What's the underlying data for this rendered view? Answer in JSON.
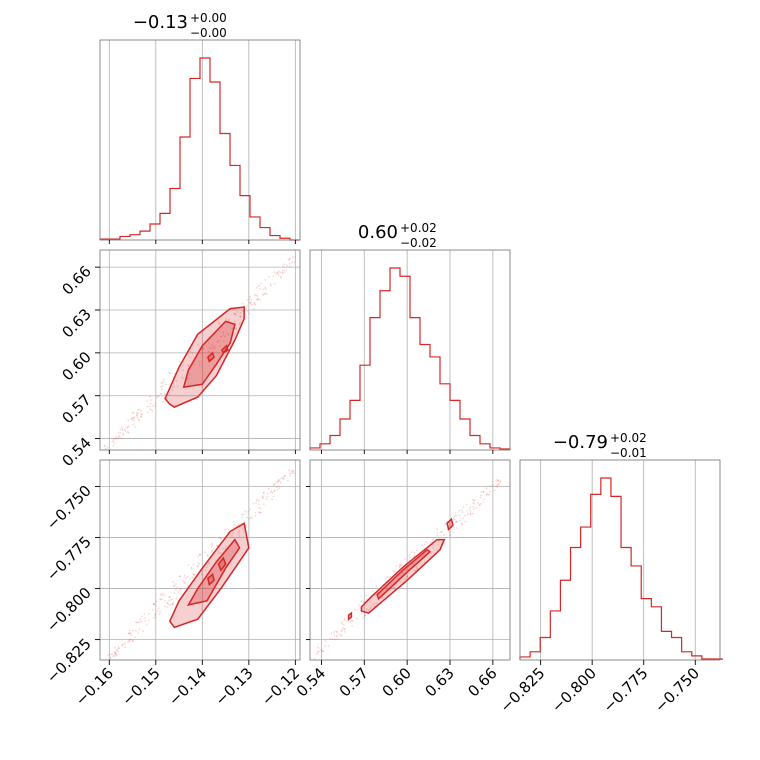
{
  "chart_data": {
    "type": "corner",
    "color": "#d62728",
    "grid": true,
    "panels": [
      {
        "id": "hist_p0",
        "type": "histogram",
        "title": {
          "value": "−0.13",
          "plus": "+0.00",
          "minus": "−0.00"
        },
        "xlim": [
          -0.162,
          -0.119
        ],
        "bin_edges": [
          -0.162,
          -0.15985,
          -0.1577,
          -0.15555,
          -0.1534,
          -0.15125,
          -0.1491,
          -0.14695,
          -0.1448,
          -0.14265,
          -0.1405,
          -0.13835,
          -0.1362,
          -0.13405,
          -0.1319,
          -0.12975,
          -0.1276,
          -0.12545,
          -0.1233,
          -0.12115,
          -0.119
        ],
        "counts": [
          1,
          1,
          4,
          6,
          10,
          18,
          30,
          58,
          116,
          182,
          205,
          178,
          120,
          84,
          50,
          26,
          14,
          5,
          2,
          0
        ],
        "xticks": [],
        "xticklabels": []
      },
      {
        "id": "hist_p1",
        "type": "histogram",
        "title": {
          "value": "0.60",
          "plus": "+0.02",
          "minus": "−0.02"
        },
        "xlim": [
          0.532,
          0.672
        ],
        "bin_edges": [
          0.532,
          0.539,
          0.546,
          0.553,
          0.56,
          0.567,
          0.574,
          0.581,
          0.588,
          0.595,
          0.602,
          0.609,
          0.616,
          0.623,
          0.63,
          0.637,
          0.644,
          0.651,
          0.658,
          0.665,
          0.672
        ],
        "counts": [
          2,
          6,
          14,
          30,
          48,
          82,
          128,
          154,
          176,
          168,
          128,
          102,
          90,
          64,
          48,
          30,
          14,
          6,
          2,
          1
        ],
        "xticks": [],
        "xticklabels": []
      },
      {
        "id": "hist_p2",
        "type": "histogram",
        "title": {
          "value": "−0.79",
          "plus": "+0.02",
          "minus": "−0.01"
        },
        "xlim": [
          -0.835,
          -0.738
        ],
        "bin_edges": [
          -0.835,
          -0.8301,
          -0.8252,
          -0.8203,
          -0.8154,
          -0.8105,
          -0.8056,
          -0.8007,
          -0.7958,
          -0.7909,
          -0.786,
          -0.7811,
          -0.7762,
          -0.7713,
          -0.7664,
          -0.7615,
          -0.7566,
          -0.7517,
          -0.7468,
          -0.7419,
          -0.737
        ],
        "counts": [
          3,
          8,
          22,
          48,
          78,
          110,
          130,
          162,
          178,
          160,
          110,
          92,
          60,
          52,
          28,
          22,
          8,
          4,
          1,
          1
        ],
        "xticks": [
          -0.825,
          -0.8,
          -0.775,
          -0.75
        ],
        "xticklabels": [
          "−0.825",
          "−0.800",
          "−0.775",
          "−0.750"
        ]
      },
      {
        "id": "joint_p0_p1",
        "type": "joint",
        "xlim": [
          -0.162,
          -0.119
        ],
        "ylim": [
          0.532,
          0.672
        ],
        "yticks": [
          0.54,
          0.57,
          0.6,
          0.63,
          0.66
        ],
        "yticklabels": [
          "0.54",
          "0.57",
          "0.60",
          "0.63",
          "0.66"
        ],
        "xticks": [],
        "xticklabels": [],
        "trend": {
          "x0": -0.161,
          "y0": 0.532,
          "x1": -0.12,
          "y1": 0.667
        },
        "contours": [
          [
            [
              -0.147,
              0.564
            ],
            [
              -0.146,
              0.562
            ],
            [
              -0.141,
              0.569
            ],
            [
              -0.137,
              0.584
            ],
            [
              -0.133,
              0.609
            ],
            [
              -0.131,
              0.624
            ],
            [
              -0.131,
              0.632
            ],
            [
              -0.134,
              0.631
            ],
            [
              -0.141,
              0.613
            ],
            [
              -0.145,
              0.59
            ],
            [
              -0.148,
              0.568
            ]
          ],
          [
            [
              -0.144,
              0.576
            ],
            [
              -0.14,
              0.578
            ],
            [
              -0.137,
              0.592
            ],
            [
              -0.134,
              0.607
            ],
            [
              -0.133,
              0.62
            ],
            [
              -0.135,
              0.622
            ],
            [
              -0.14,
              0.605
            ],
            [
              -0.143,
              0.588
            ]
          ],
          [
            [
              -0.1385,
              0.594
            ],
            [
              -0.1375,
              0.597
            ],
            [
              -0.1378,
              0.6
            ],
            [
              -0.1388,
              0.597
            ]
          ],
          [
            [
              -0.1355,
              0.6
            ],
            [
              -0.1345,
              0.602
            ],
            [
              -0.1348,
              0.605
            ],
            [
              -0.1358,
              0.602
            ]
          ]
        ]
      },
      {
        "id": "joint_p0_p2",
        "type": "joint",
        "xlim": [
          -0.162,
          -0.119
        ],
        "ylim": [
          -0.835,
          -0.737
        ],
        "yticks": [
          -0.825,
          -0.8,
          -0.775,
          -0.75
        ],
        "yticklabels": [
          "−0.825",
          "−0.800",
          "−0.775",
          "−0.750"
        ],
        "xticks": [
          -0.16,
          -0.15,
          -0.14,
          -0.13,
          -0.12
        ],
        "xticklabels": [
          "−0.16",
          "−0.15",
          "−0.14",
          "−0.13",
          "−0.12"
        ],
        "trend": {
          "x0": -0.16,
          "y0": -0.834,
          "x1": -0.12,
          "y1": -0.741
        },
        "contours": [
          [
            [
              -0.147,
              -0.816
            ],
            [
              -0.146,
              -0.819
            ],
            [
              -0.141,
              -0.815
            ],
            [
              -0.136,
              -0.8
            ],
            [
              -0.133,
              -0.79
            ],
            [
              -0.13,
              -0.78
            ],
            [
              -0.131,
              -0.768
            ],
            [
              -0.134,
              -0.772
            ],
            [
              -0.14,
              -0.79
            ],
            [
              -0.145,
              -0.806
            ]
          ],
          [
            [
              -0.143,
              -0.808
            ],
            [
              -0.139,
              -0.806
            ],
            [
              -0.135,
              -0.79
            ],
            [
              -0.132,
              -0.78
            ],
            [
              -0.133,
              -0.776
            ],
            [
              -0.137,
              -0.787
            ],
            [
              -0.141,
              -0.8
            ]
          ],
          [
            [
              -0.1385,
              -0.798
            ],
            [
              -0.1375,
              -0.796
            ],
            [
              -0.1378,
              -0.793
            ],
            [
              -0.1388,
              -0.795
            ]
          ],
          [
            [
              -0.136,
              -0.791
            ],
            [
              -0.135,
              -0.788
            ],
            [
              -0.1355,
              -0.785
            ],
            [
              -0.1365,
              -0.788
            ]
          ]
        ]
      },
      {
        "id": "joint_p1_p2",
        "type": "joint",
        "xlim": [
          0.532,
          0.672
        ],
        "ylim": [
          -0.835,
          -0.737
        ],
        "yticks": [],
        "yticklabels": [],
        "xticks": [
          0.54,
          0.57,
          0.6,
          0.63,
          0.66
        ],
        "xticklabels": [
          "0.54",
          "0.57",
          "0.60",
          "0.63",
          "0.66"
        ],
        "trend": {
          "x0": 0.533,
          "y0": -0.834,
          "x1": 0.665,
          "y1": -0.747
        },
        "contours": [
          [
            [
              0.568,
              -0.811
            ],
            [
              0.573,
              -0.812
            ],
            [
              0.6,
              -0.796
            ],
            [
              0.623,
              -0.781
            ],
            [
              0.626,
              -0.776
            ],
            [
              0.621,
              -0.776
            ],
            [
              0.598,
              -0.789
            ],
            [
              0.575,
              -0.804
            ],
            [
              0.568,
              -0.809
            ]
          ],
          [
            [
              0.58,
              -0.805
            ],
            [
              0.6,
              -0.792
            ],
            [
              0.616,
              -0.782
            ],
            [
              0.614,
              -0.781
            ],
            [
              0.597,
              -0.791
            ],
            [
              0.579,
              -0.803
            ]
          ],
          [
            [
              0.559,
              -0.815
            ],
            [
              0.561,
              -0.814
            ],
            [
              0.561,
              -0.812
            ],
            [
              0.559,
              -0.813
            ]
          ],
          [
            [
              0.629,
              -0.771
            ],
            [
              0.632,
              -0.769
            ],
            [
              0.631,
              -0.766
            ],
            [
              0.628,
              -0.768
            ]
          ]
        ]
      }
    ]
  }
}
